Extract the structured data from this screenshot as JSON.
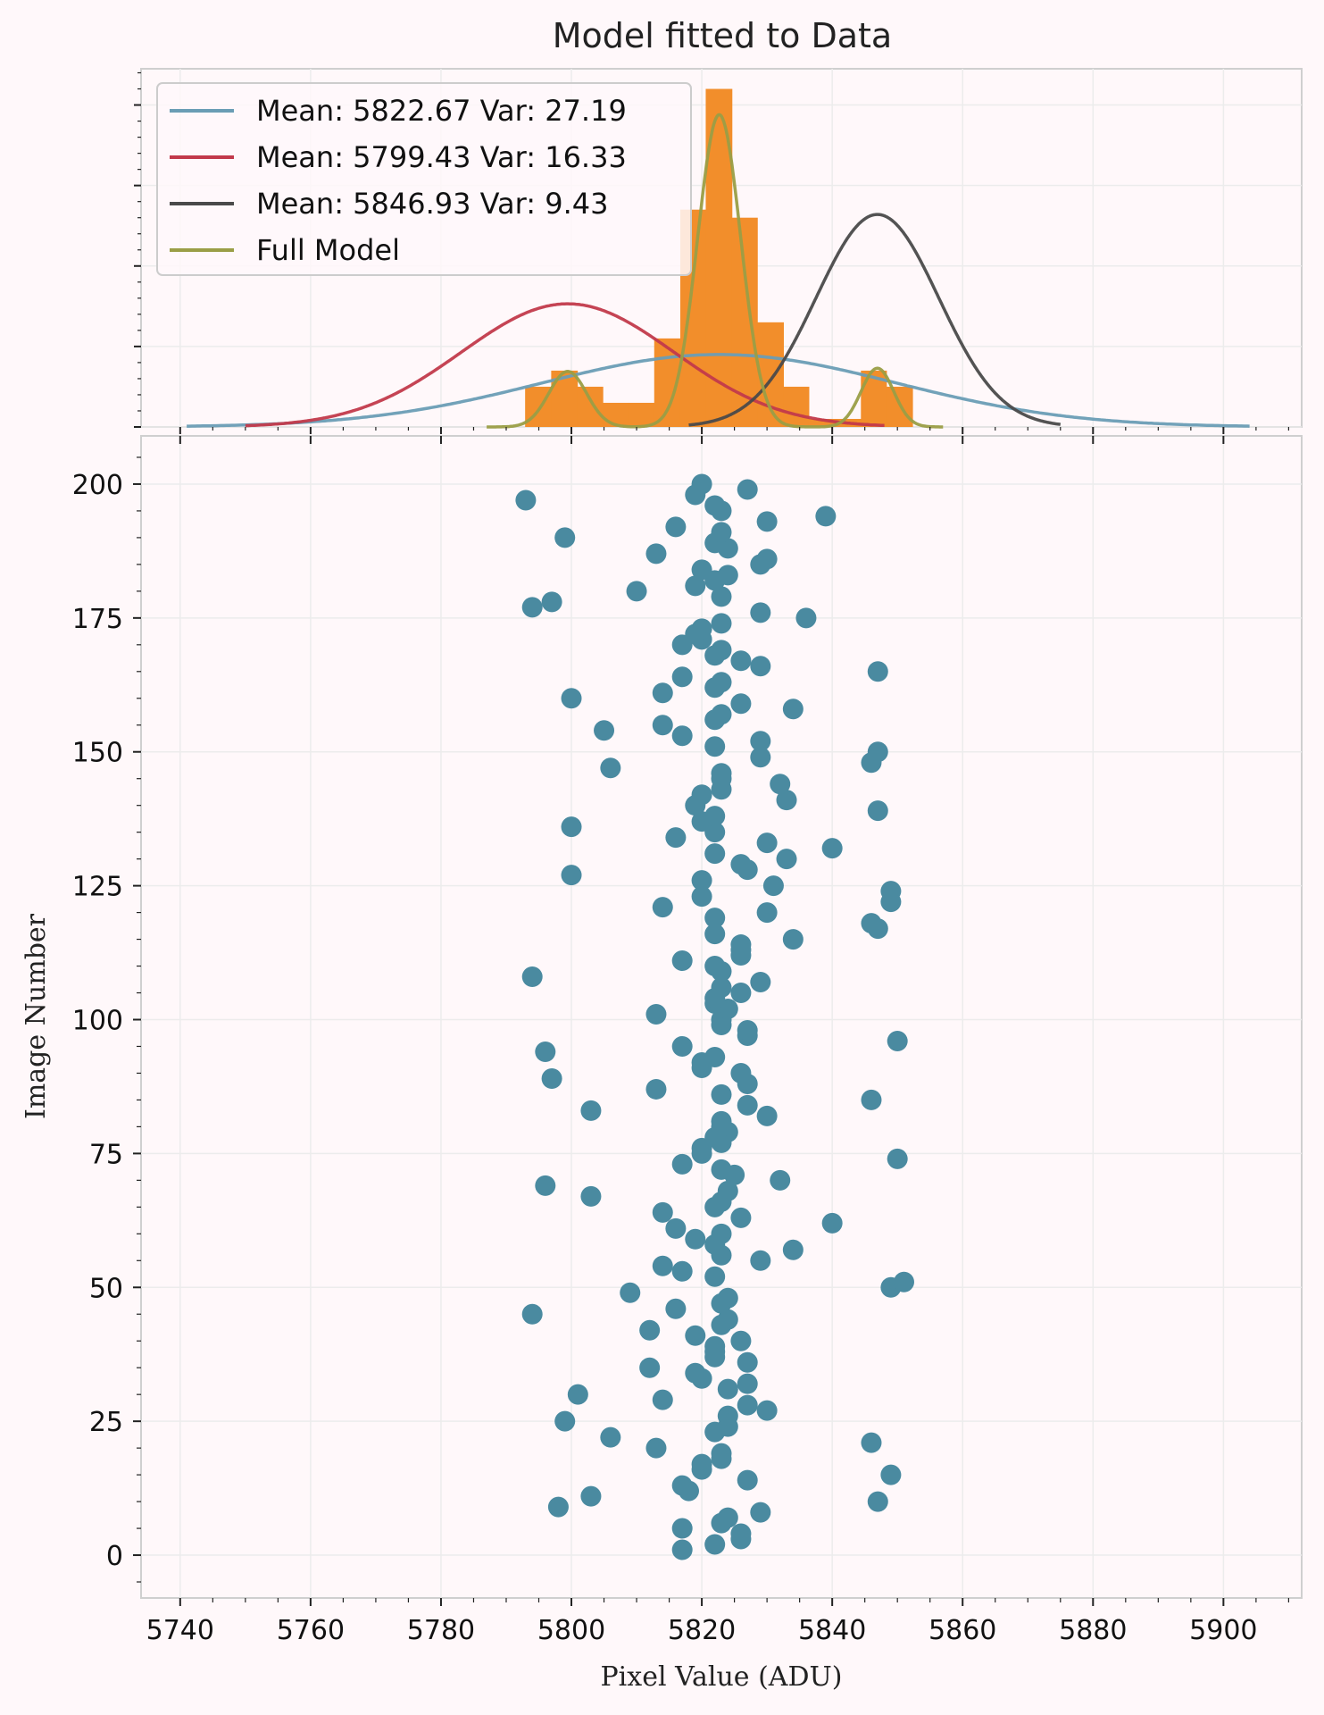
{
  "chart_data": [
    {
      "type": "histogram",
      "title": "Model fitted to Data",
      "xlabel": "",
      "ylabel": "",
      "xlim": [
        5734,
        5912
      ],
      "grid": true,
      "legend_placement": "top-left",
      "histogram": {
        "color": "#f28e2b",
        "bins": [
          {
            "x0": 5792.9,
            "x1": 5796.9,
            "count": 5
          },
          {
            "x0": 5796.9,
            "x1": 5800.9,
            "count": 7
          },
          {
            "x0": 5800.9,
            "x1": 5804.8,
            "count": 5
          },
          {
            "x0": 5804.8,
            "x1": 5808.8,
            "count": 3
          },
          {
            "x0": 5808.8,
            "x1": 5812.7,
            "count": 3
          },
          {
            "x0": 5812.7,
            "x1": 5816.7,
            "count": 11
          },
          {
            "x0": 5816.7,
            "x1": 5820.6,
            "count": 27
          },
          {
            "x0": 5820.6,
            "x1": 5824.6,
            "count": 42
          },
          {
            "x0": 5824.6,
            "x1": 5828.5,
            "count": 26
          },
          {
            "x0": 5828.5,
            "x1": 5832.5,
            "count": 13
          },
          {
            "x0": 5832.5,
            "x1": 5836.4,
            "count": 5
          },
          {
            "x0": 5836.4,
            "x1": 5840.4,
            "count": 1
          },
          {
            "x0": 5840.4,
            "x1": 5844.4,
            "count": 1
          },
          {
            "x0": 5844.4,
            "x1": 5848.3,
            "count": 7
          },
          {
            "x0": 5848.3,
            "x1": 5852.3,
            "count": 5
          }
        ]
      },
      "series": [
        {
          "name": "Mean:  5822.67 Var:  27.19",
          "color": "#6a9db5",
          "mean": 5822.67,
          "sigma": 27.19,
          "peak": 9.0,
          "x_range": [
            5741,
            5904
          ]
        },
        {
          "name": "Mean:  5799.43 Var:  16.33",
          "color": "#c23a4b",
          "mean": 5799.43,
          "sigma": 16.33,
          "peak": 15.3,
          "x_range": [
            5750,
            5848
          ]
        },
        {
          "name": "Mean:  5846.93 Var:  9.43",
          "color": "#4a4a4a",
          "mean": 5846.93,
          "sigma": 9.43,
          "peak": 26.4,
          "x_range": [
            5818,
            5875
          ]
        },
        {
          "name": "Full Model",
          "color": "#9a9e46",
          "components": [
            {
              "mean": 5822.67,
              "sigma": 3.3,
              "peak": 38.8
            },
            {
              "mean": 5799.43,
              "sigma": 2.9,
              "peak": 6.9
            },
            {
              "mean": 5846.93,
              "sigma": 2.5,
              "peak": 7.3
            }
          ],
          "x_range": [
            5787,
            5857
          ]
        }
      ]
    },
    {
      "type": "scatter",
      "title": "",
      "xlabel": "Pixel Value (ADU)",
      "ylabel": "Image Number",
      "xlim": [
        5734,
        5912
      ],
      "ylim": [
        -8,
        209
      ],
      "x_ticks": [
        5740,
        5760,
        5780,
        5800,
        5820,
        5840,
        5860,
        5880,
        5900
      ],
      "y_ticks": [
        0,
        25,
        50,
        75,
        100,
        125,
        150,
        175,
        200
      ],
      "grid": true,
      "marker_color": "#4a8aa0",
      "points": [
        {
          "x": 5817,
          "y": 1
        },
        {
          "x": 5822,
          "y": 2
        },
        {
          "x": 5826,
          "y": 3
        },
        {
          "x": 5826,
          "y": 4
        },
        {
          "x": 5817,
          "y": 5
        },
        {
          "x": 5823,
          "y": 6
        },
        {
          "x": 5824,
          "y": 7
        },
        {
          "x": 5829,
          "y": 8
        },
        {
          "x": 5798,
          "y": 9
        },
        {
          "x": 5847,
          "y": 10
        },
        {
          "x": 5803,
          "y": 11
        },
        {
          "x": 5818,
          "y": 12
        },
        {
          "x": 5817,
          "y": 13
        },
        {
          "x": 5827,
          "y": 14
        },
        {
          "x": 5849,
          "y": 15
        },
        {
          "x": 5820,
          "y": 16
        },
        {
          "x": 5820,
          "y": 17
        },
        {
          "x": 5823,
          "y": 18
        },
        {
          "x": 5823,
          "y": 19
        },
        {
          "x": 5813,
          "y": 20
        },
        {
          "x": 5846,
          "y": 21
        },
        {
          "x": 5806,
          "y": 22
        },
        {
          "x": 5822,
          "y": 23
        },
        {
          "x": 5824,
          "y": 24
        },
        {
          "x": 5799,
          "y": 25
        },
        {
          "x": 5824,
          "y": 26
        },
        {
          "x": 5830,
          "y": 27
        },
        {
          "x": 5827,
          "y": 28
        },
        {
          "x": 5814,
          "y": 29
        },
        {
          "x": 5801,
          "y": 30
        },
        {
          "x": 5824,
          "y": 31
        },
        {
          "x": 5827,
          "y": 32
        },
        {
          "x": 5820,
          "y": 33
        },
        {
          "x": 5819,
          "y": 34
        },
        {
          "x": 5812,
          "y": 35
        },
        {
          "x": 5827,
          "y": 36
        },
        {
          "x": 5822,
          "y": 37
        },
        {
          "x": 5822,
          "y": 38
        },
        {
          "x": 5822,
          "y": 39
        },
        {
          "x": 5826,
          "y": 40
        },
        {
          "x": 5819,
          "y": 41
        },
        {
          "x": 5812,
          "y": 42
        },
        {
          "x": 5823,
          "y": 43
        },
        {
          "x": 5824,
          "y": 44
        },
        {
          "x": 5794,
          "y": 45
        },
        {
          "x": 5816,
          "y": 46
        },
        {
          "x": 5823,
          "y": 47
        },
        {
          "x": 5824,
          "y": 48
        },
        {
          "x": 5809,
          "y": 49
        },
        {
          "x": 5849,
          "y": 50
        },
        {
          "x": 5851,
          "y": 51
        },
        {
          "x": 5822,
          "y": 52
        },
        {
          "x": 5817,
          "y": 53
        },
        {
          "x": 5814,
          "y": 54
        },
        {
          "x": 5829,
          "y": 55
        },
        {
          "x": 5823,
          "y": 56
        },
        {
          "x": 5834,
          "y": 57
        },
        {
          "x": 5822,
          "y": 58
        },
        {
          "x": 5819,
          "y": 59
        },
        {
          "x": 5823,
          "y": 60
        },
        {
          "x": 5816,
          "y": 61
        },
        {
          "x": 5840,
          "y": 62
        },
        {
          "x": 5826,
          "y": 63
        },
        {
          "x": 5814,
          "y": 64
        },
        {
          "x": 5822,
          "y": 65
        },
        {
          "x": 5823,
          "y": 66
        },
        {
          "x": 5803,
          "y": 67
        },
        {
          "x": 5824,
          "y": 68
        },
        {
          "x": 5796,
          "y": 69
        },
        {
          "x": 5832,
          "y": 70
        },
        {
          "x": 5825,
          "y": 71
        },
        {
          "x": 5823,
          "y": 72
        },
        {
          "x": 5817,
          "y": 73
        },
        {
          "x": 5850,
          "y": 74
        },
        {
          "x": 5820,
          "y": 75
        },
        {
          "x": 5820,
          "y": 76
        },
        {
          "x": 5823,
          "y": 77
        },
        {
          "x": 5822,
          "y": 78
        },
        {
          "x": 5824,
          "y": 79
        },
        {
          "x": 5823,
          "y": 80
        },
        {
          "x": 5823,
          "y": 81
        },
        {
          "x": 5830,
          "y": 82
        },
        {
          "x": 5803,
          "y": 83
        },
        {
          "x": 5827,
          "y": 84
        },
        {
          "x": 5846,
          "y": 85
        },
        {
          "x": 5823,
          "y": 86
        },
        {
          "x": 5813,
          "y": 87
        },
        {
          "x": 5827,
          "y": 88
        },
        {
          "x": 5797,
          "y": 89
        },
        {
          "x": 5826,
          "y": 90
        },
        {
          "x": 5820,
          "y": 91
        },
        {
          "x": 5820,
          "y": 92
        },
        {
          "x": 5822,
          "y": 93
        },
        {
          "x": 5796,
          "y": 94
        },
        {
          "x": 5817,
          "y": 95
        },
        {
          "x": 5850,
          "y": 96
        },
        {
          "x": 5827,
          "y": 97
        },
        {
          "x": 5827,
          "y": 98
        },
        {
          "x": 5823,
          "y": 99
        },
        {
          "x": 5823,
          "y": 100
        },
        {
          "x": 5813,
          "y": 101
        },
        {
          "x": 5824,
          "y": 102
        },
        {
          "x": 5822,
          "y": 103
        },
        {
          "x": 5822,
          "y": 104
        },
        {
          "x": 5826,
          "y": 105
        },
        {
          "x": 5823,
          "y": 106
        },
        {
          "x": 5829,
          "y": 107
        },
        {
          "x": 5794,
          "y": 108
        },
        {
          "x": 5823,
          "y": 109
        },
        {
          "x": 5822,
          "y": 110
        },
        {
          "x": 5817,
          "y": 111
        },
        {
          "x": 5826,
          "y": 112
        },
        {
          "x": 5826,
          "y": 113
        },
        {
          "x": 5826,
          "y": 114
        },
        {
          "x": 5834,
          "y": 115
        },
        {
          "x": 5822,
          "y": 116
        },
        {
          "x": 5847,
          "y": 117
        },
        {
          "x": 5846,
          "y": 118
        },
        {
          "x": 5822,
          "y": 119
        },
        {
          "x": 5830,
          "y": 120
        },
        {
          "x": 5814,
          "y": 121
        },
        {
          "x": 5849,
          "y": 122
        },
        {
          "x": 5820,
          "y": 123
        },
        {
          "x": 5849,
          "y": 124
        },
        {
          "x": 5831,
          "y": 125
        },
        {
          "x": 5820,
          "y": 126
        },
        {
          "x": 5800,
          "y": 127
        },
        {
          "x": 5827,
          "y": 128
        },
        {
          "x": 5826,
          "y": 129
        },
        {
          "x": 5833,
          "y": 130
        },
        {
          "x": 5822,
          "y": 131
        },
        {
          "x": 5840,
          "y": 132
        },
        {
          "x": 5830,
          "y": 133
        },
        {
          "x": 5816,
          "y": 134
        },
        {
          "x": 5822,
          "y": 135
        },
        {
          "x": 5800,
          "y": 136
        },
        {
          "x": 5820,
          "y": 137
        },
        {
          "x": 5822,
          "y": 138
        },
        {
          "x": 5847,
          "y": 139
        },
        {
          "x": 5819,
          "y": 140
        },
        {
          "x": 5833,
          "y": 141
        },
        {
          "x": 5820,
          "y": 142
        },
        {
          "x": 5823,
          "y": 143
        },
        {
          "x": 5832,
          "y": 144
        },
        {
          "x": 5823,
          "y": 145
        },
        {
          "x": 5823,
          "y": 146
        },
        {
          "x": 5806,
          "y": 147
        },
        {
          "x": 5846,
          "y": 148
        },
        {
          "x": 5829,
          "y": 149
        },
        {
          "x": 5847,
          "y": 150
        },
        {
          "x": 5822,
          "y": 151
        },
        {
          "x": 5829,
          "y": 152
        },
        {
          "x": 5817,
          "y": 153
        },
        {
          "x": 5805,
          "y": 154
        },
        {
          "x": 5814,
          "y": 155
        },
        {
          "x": 5822,
          "y": 156
        },
        {
          "x": 5823,
          "y": 157
        },
        {
          "x": 5834,
          "y": 158
        },
        {
          "x": 5826,
          "y": 159
        },
        {
          "x": 5800,
          "y": 160
        },
        {
          "x": 5814,
          "y": 161
        },
        {
          "x": 5822,
          "y": 162
        },
        {
          "x": 5823,
          "y": 163
        },
        {
          "x": 5817,
          "y": 164
        },
        {
          "x": 5847,
          "y": 165
        },
        {
          "x": 5829,
          "y": 166
        },
        {
          "x": 5826,
          "y": 167
        },
        {
          "x": 5822,
          "y": 168
        },
        {
          "x": 5823,
          "y": 169
        },
        {
          "x": 5817,
          "y": 170
        },
        {
          "x": 5820,
          "y": 171
        },
        {
          "x": 5819,
          "y": 172
        },
        {
          "x": 5820,
          "y": 173
        },
        {
          "x": 5823,
          "y": 174
        },
        {
          "x": 5836,
          "y": 175
        },
        {
          "x": 5829,
          "y": 176
        },
        {
          "x": 5794,
          "y": 177
        },
        {
          "x": 5797,
          "y": 178
        },
        {
          "x": 5823,
          "y": 179
        },
        {
          "x": 5810,
          "y": 180
        },
        {
          "x": 5819,
          "y": 181
        },
        {
          "x": 5822,
          "y": 182
        },
        {
          "x": 5824,
          "y": 183
        },
        {
          "x": 5820,
          "y": 184
        },
        {
          "x": 5829,
          "y": 185
        },
        {
          "x": 5830,
          "y": 186
        },
        {
          "x": 5813,
          "y": 187
        },
        {
          "x": 5824,
          "y": 188
        },
        {
          "x": 5822,
          "y": 189
        },
        {
          "x": 5799,
          "y": 190
        },
        {
          "x": 5823,
          "y": 191
        },
        {
          "x": 5816,
          "y": 192
        },
        {
          "x": 5830,
          "y": 193
        },
        {
          "x": 5839,
          "y": 194
        },
        {
          "x": 5823,
          "y": 195
        },
        {
          "x": 5822,
          "y": 196
        },
        {
          "x": 5793,
          "y": 197
        },
        {
          "x": 5819,
          "y": 198
        },
        {
          "x": 5827,
          "y": 199
        },
        {
          "x": 5820,
          "y": 200
        }
      ]
    }
  ]
}
